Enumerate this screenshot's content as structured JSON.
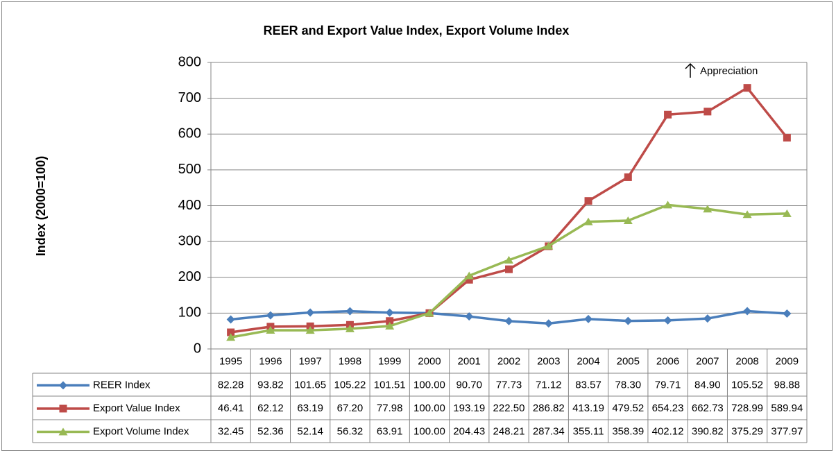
{
  "chart_data": {
    "type": "line",
    "title": "REER and Export Value Index, Export Volume Index",
    "y_label": "Index (2000=100)",
    "annotation": "Appreciation",
    "categories": [
      "1995",
      "1996",
      "1997",
      "1998",
      "1999",
      "2000",
      "2001",
      "2002",
      "2003",
      "2004",
      "2005",
      "2006",
      "2007",
      "2008",
      "2009"
    ],
    "series": [
      {
        "name": "REER Index",
        "color": "#4a7ebb",
        "marker": "diamond",
        "values": [
          82.28,
          93.82,
          101.65,
          105.22,
          101.51,
          100,
          90.7,
          77.73,
          71.12,
          83.57,
          78.3,
          79.71,
          84.9,
          105.52,
          98.88
        ],
        "value_labels": [
          "82.28",
          "93.82",
          "101.65",
          "105.22",
          "101.51",
          "100.00",
          "90.70",
          "77.73",
          "71.12",
          "83.57",
          "78.30",
          "79.71",
          "84.90",
          "105.52",
          "98.88"
        ]
      },
      {
        "name": "Export Value Index",
        "color": "#be4b48",
        "marker": "square",
        "values": [
          46.41,
          62.12,
          63.19,
          67.2,
          77.98,
          100,
          193.19,
          222.5,
          286.82,
          413.19,
          479.52,
          654.23,
          662.73,
          728.99,
          589.94
        ],
        "value_labels": [
          "46.41",
          "62.12",
          "63.19",
          "67.20",
          "77.98",
          "100.00",
          "193.19",
          "222.50",
          "286.82",
          "413.19",
          "479.52",
          "654.23",
          "662.73",
          "728.99",
          "589.94"
        ]
      },
      {
        "name": "Export Volume Index",
        "color": "#98b954",
        "marker": "triangle",
        "values": [
          32.45,
          52.36,
          52.14,
          56.32,
          63.91,
          100,
          204.43,
          248.21,
          287.34,
          355.11,
          358.39,
          402.12,
          390.82,
          375.29,
          377.97
        ],
        "value_labels": [
          "32.45",
          "52.36",
          "52.14",
          "56.32",
          "63.91",
          "100.00",
          "204.43",
          "248.21",
          "287.34",
          "355.11",
          "358.39",
          "402.12",
          "390.82",
          "375.29",
          "377.97"
        ]
      }
    ],
    "ylim": [
      0,
      800
    ],
    "yticks": [
      0,
      100,
      200,
      300,
      400,
      500,
      600,
      700,
      800
    ],
    "grid": true
  }
}
